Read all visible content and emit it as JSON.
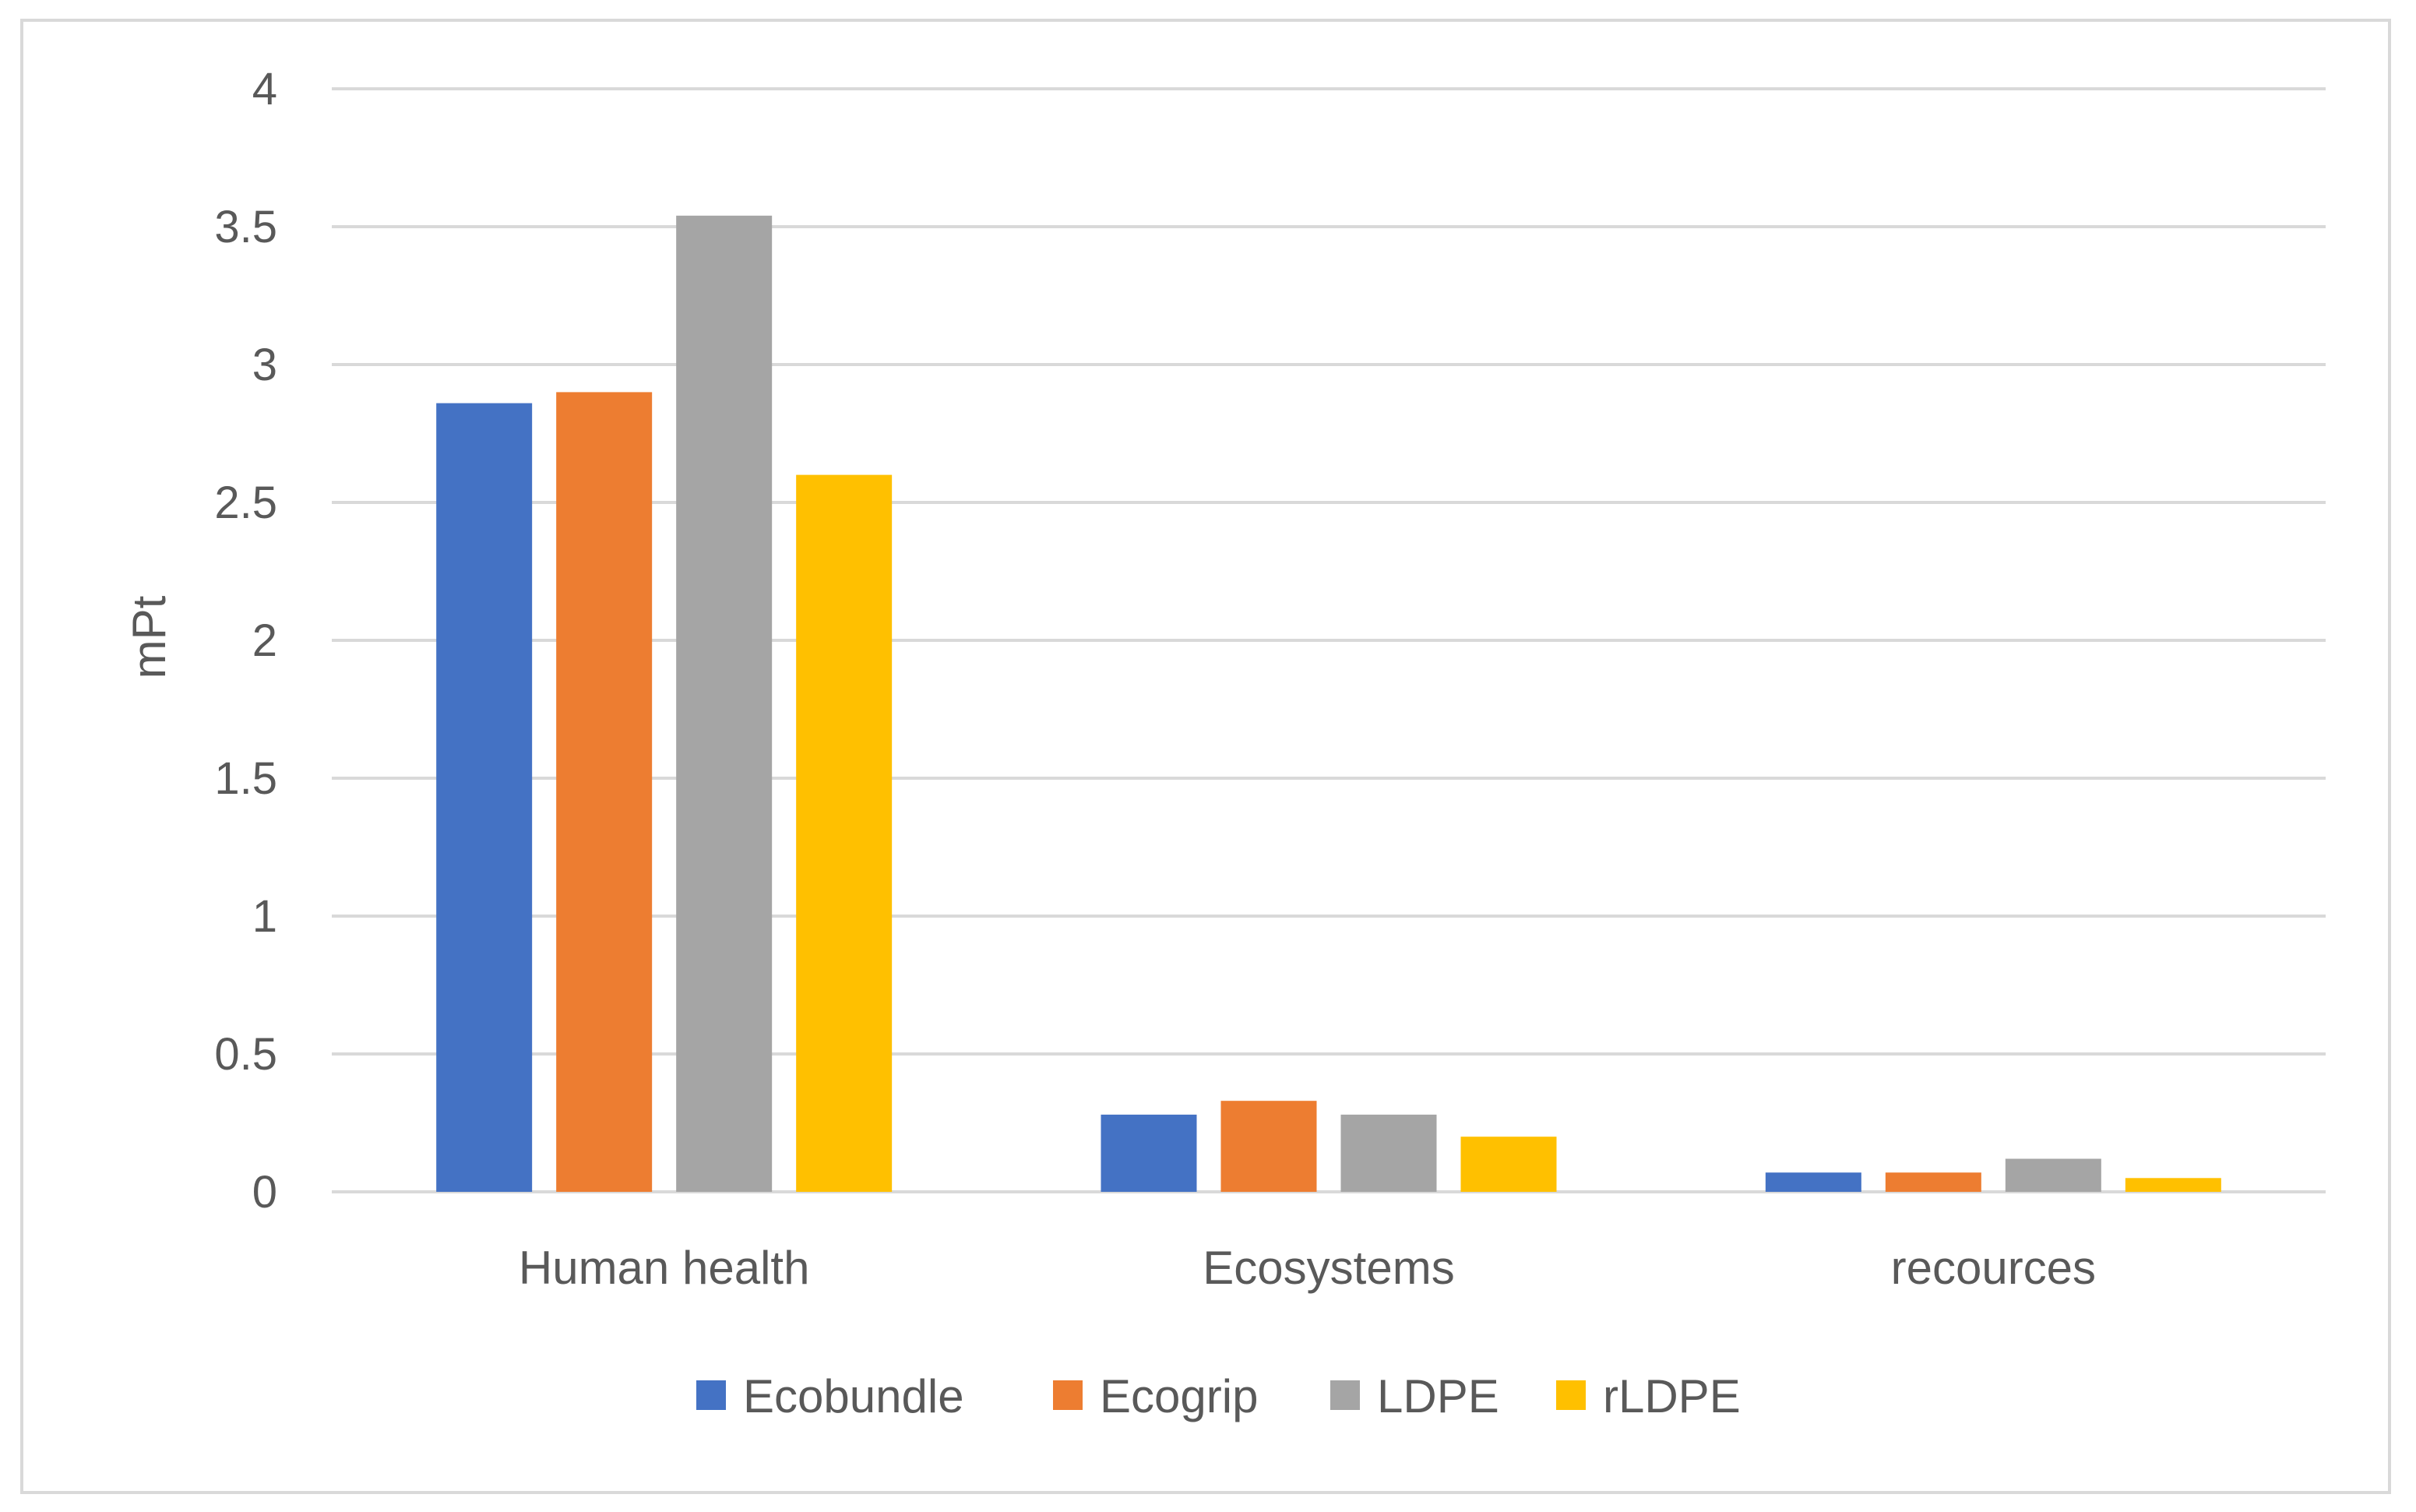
{
  "chart_data": {
    "type": "bar",
    "title": "",
    "xlabel": "",
    "ylabel": "mPt",
    "ylim": [
      0,
      4
    ],
    "yticks": [
      0,
      0.5,
      1,
      1.5,
      2,
      2.5,
      3,
      3.5,
      4
    ],
    "ytick_labels": [
      "0",
      "0.5",
      "1",
      "1.5",
      "2",
      "2.5",
      "3",
      "3.5",
      "4"
    ],
    "grid": true,
    "legend_position": "bottom",
    "categories": [
      "Human health",
      "Ecosystems",
      "recources"
    ],
    "series": [
      {
        "name": "Ecobundle",
        "color": "#4472c4",
        "values": [
          2.86,
          0.28,
          0.07
        ]
      },
      {
        "name": "Ecogrip",
        "color": "#ed7d31",
        "values": [
          2.9,
          0.33,
          0.07
        ]
      },
      {
        "name": "LDPE",
        "color": "#a5a5a5",
        "values": [
          3.54,
          0.28,
          0.12
        ]
      },
      {
        "name": "rLDPE",
        "color": "#ffc000",
        "values": [
          2.6,
          0.2,
          0.05
        ]
      }
    ]
  }
}
